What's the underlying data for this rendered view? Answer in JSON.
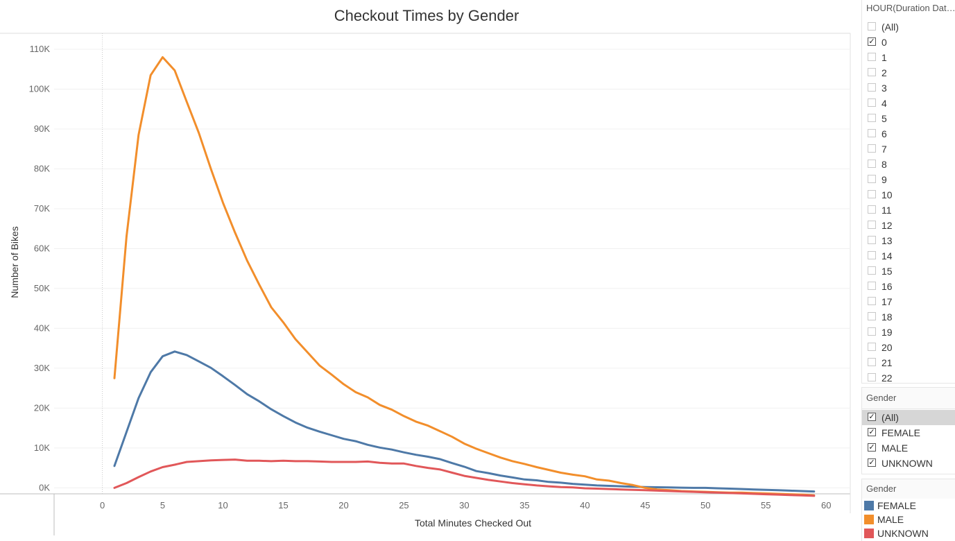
{
  "chart_data": {
    "type": "line",
    "title": "Checkout Times by Gender",
    "xlabel": "Total Minutes Checked Out",
    "ylabel": "Number of Bikes",
    "xlim": [
      -4,
      62
    ],
    "ylim": [
      -1500,
      114000
    ],
    "x_ticks": [
      0,
      5,
      10,
      15,
      20,
      25,
      30,
      35,
      40,
      45,
      50,
      55,
      60
    ],
    "x_tick_labels": [
      "0",
      "5",
      "10",
      "15",
      "20",
      "25",
      "30",
      "35",
      "40",
      "45",
      "50",
      "55",
      "60"
    ],
    "y_ticks": [
      0,
      10000,
      20000,
      30000,
      40000,
      50000,
      60000,
      70000,
      80000,
      90000,
      100000,
      110000
    ],
    "y_tick_labels": [
      "0K",
      "10K",
      "20K",
      "30K",
      "40K",
      "50K",
      "60K",
      "70K",
      "80K",
      "90K",
      "100K",
      "110K"
    ],
    "grid": "horizontal",
    "zero_line_x": 0,
    "x": [
      1,
      2,
      3,
      4,
      5,
      6,
      7,
      8,
      9,
      10,
      11,
      12,
      13,
      14,
      15,
      16,
      17,
      18,
      19,
      20,
      21,
      22,
      23,
      24,
      25,
      26,
      27,
      28,
      29,
      30,
      31,
      32,
      33,
      34,
      35,
      36,
      37,
      38,
      39,
      40,
      41,
      42,
      43,
      44,
      45,
      46,
      47,
      48,
      49,
      50,
      51,
      52,
      53,
      54,
      55,
      56,
      57,
      58,
      59
    ],
    "series": [
      {
        "name": "FEMALE",
        "color": "#4e79a7",
        "values": [
          5500,
          14000,
          22500,
          29000,
          33000,
          34200,
          33300,
          31700,
          30100,
          28000,
          25800,
          23500,
          21700,
          19700,
          18000,
          16400,
          15100,
          14100,
          13200,
          12300,
          11700,
          10800,
          10100,
          9600,
          8900,
          8300,
          7800,
          7200,
          6200,
          5300,
          4200,
          3700,
          3100,
          2600,
          2100,
          1900,
          1500,
          1300,
          1000,
          800,
          600,
          500,
          400,
          300,
          200,
          150,
          100,
          50,
          0,
          0,
          -100,
          -200,
          -300,
          -400,
          -500,
          -600,
          -700,
          -800,
          -900
        ]
      },
      {
        "name": "MALE",
        "color": "#f28e2b",
        "values": [
          27500,
          63000,
          88500,
          103500,
          108000,
          104700,
          96800,
          89000,
          80000,
          71500,
          64000,
          57000,
          51000,
          45300,
          41500,
          37300,
          34000,
          30700,
          28400,
          26000,
          24000,
          22700,
          20800,
          19600,
          18000,
          16600,
          15600,
          14200,
          12800,
          11100,
          9800,
          8700,
          7600,
          6700,
          6000,
          5200,
          4500,
          3800,
          3300,
          2900,
          2100,
          1800,
          1200,
          700,
          0,
          -400,
          -600,
          -800,
          -900,
          -1000,
          -1100,
          -1200,
          -1200,
          -1300,
          -1400,
          -1500,
          -1600,
          -1700,
          -1900
        ]
      },
      {
        "name": "UNKNOWN",
        "color": "#e15759",
        "values": [
          0,
          1200,
          2700,
          4100,
          5200,
          5800,
          6500,
          6700,
          6900,
          7000,
          7100,
          6800,
          6800,
          6700,
          6800,
          6700,
          6700,
          6600,
          6500,
          6500,
          6500,
          6600,
          6300,
          6100,
          6100,
          5500,
          5000,
          4600,
          3800,
          3000,
          2500,
          2000,
          1600,
          1200,
          900,
          600,
          400,
          200,
          100,
          -100,
          -200,
          -300,
          -400,
          -500,
          -600,
          -700,
          -800,
          -900,
          -1000,
          -1100,
          -1200,
          -1300,
          -1400,
          -1500,
          -1600,
          -1700,
          -1800,
          -1900,
          -2000
        ]
      }
    ]
  },
  "hour_filter": {
    "title": "HOUR(Duration Dateti..",
    "items": [
      {
        "label": "(All)",
        "checked": ""
      },
      {
        "label": "0",
        "checked": "✓"
      },
      {
        "label": "1",
        "checked": ""
      },
      {
        "label": "2",
        "checked": ""
      },
      {
        "label": "3",
        "checked": ""
      },
      {
        "label": "4",
        "checked": ""
      },
      {
        "label": "5",
        "checked": ""
      },
      {
        "label": "6",
        "checked": ""
      },
      {
        "label": "7",
        "checked": ""
      },
      {
        "label": "8",
        "checked": ""
      },
      {
        "label": "9",
        "checked": ""
      },
      {
        "label": "10",
        "checked": ""
      },
      {
        "label": "11",
        "checked": ""
      },
      {
        "label": "12",
        "checked": ""
      },
      {
        "label": "13",
        "checked": ""
      },
      {
        "label": "14",
        "checked": ""
      },
      {
        "label": "15",
        "checked": ""
      },
      {
        "label": "16",
        "checked": ""
      },
      {
        "label": "17",
        "checked": ""
      },
      {
        "label": "18",
        "checked": ""
      },
      {
        "label": "19",
        "checked": ""
      },
      {
        "label": "20",
        "checked": ""
      },
      {
        "label": "21",
        "checked": ""
      },
      {
        "label": "22",
        "checked": ""
      }
    ]
  },
  "gender_filter": {
    "title": "Gender",
    "items": [
      {
        "label": "(All)",
        "checked": "✓"
      },
      {
        "label": "FEMALE",
        "checked": "✓"
      },
      {
        "label": "MALE",
        "checked": "✓"
      },
      {
        "label": "UNKNOWN",
        "checked": "✓"
      }
    ]
  },
  "gender_legend": {
    "title": "Gender",
    "items": [
      {
        "label": "FEMALE",
        "color": "#4e79a7"
      },
      {
        "label": "MALE",
        "color": "#f28e2b"
      },
      {
        "label": "UNKNOWN",
        "color": "#e15759"
      }
    ]
  }
}
